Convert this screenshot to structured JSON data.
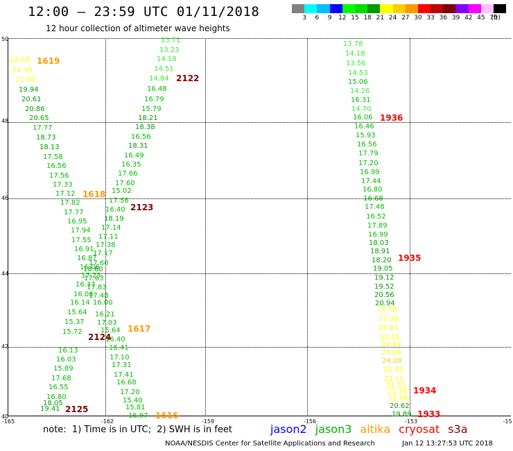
{
  "header": {
    "title": "12:00 – 23:59 UTC 01/11/2018",
    "subtitle": "12 hour collection of altimeter wave heights"
  },
  "colorbar": {
    "colors": [
      "#808080",
      "#00ffff",
      "#00bfff",
      "#0000ff",
      "#00ff00",
      "#00dd00",
      "#009900",
      "#ffff00",
      "#ffcc00",
      "#ff9900",
      "#ff0000",
      "#c00000",
      "#800000",
      "#8000ff",
      "#ff00ff",
      "#ffc0ff",
      "#000000"
    ],
    "labels": [
      "3",
      "6",
      "9",
      "12",
      "15",
      "18",
      "21",
      "24",
      "27",
      "30",
      "33",
      "36",
      "39",
      "42",
      "45",
      "70",
      "(ft)"
    ]
  },
  "map": {
    "lat_labels": [
      "50",
      "48",
      "46",
      "44",
      "42",
      "40"
    ],
    "lon_labels": [
      "-165",
      "-162",
      "-159",
      "-156",
      "-153",
      "-15"
    ]
  },
  "pass_labels": [
    {
      "text": "1619",
      "color": "#ff9900"
    },
    {
      "text": "2122",
      "color": "#800000"
    },
    {
      "text": "1936",
      "color": "#ff0000"
    },
    {
      "text": "1618",
      "color": "#ff9900"
    },
    {
      "text": "2123",
      "color": "#800000"
    },
    {
      "text": "1935",
      "color": "#ff0000"
    },
    {
      "text": "1617",
      "color": "#ff9900"
    },
    {
      "text": "2124",
      "color": "#800000"
    },
    {
      "text": "2125",
      "color": "#800000"
    },
    {
      "text": "1616",
      "color": "#ff9900"
    },
    {
      "text": "1934",
      "color": "#ff0000"
    },
    {
      "text": "1933",
      "color": "#ff0000"
    }
  ],
  "track_1616_1619": [
    "22.60",
    "21.39",
    "21.09",
    "19.94",
    "20.61",
    "20.86",
    "20.65",
    "17.77",
    "18.73",
    "18.13",
    "17.58",
    "16.56",
    "17.56",
    "17.33",
    "17.12",
    "17.82",
    "17.77",
    "16.95",
    "17.94",
    "17.55",
    "16.91",
    "16.87",
    "16.06",
    "17.23",
    "16.37",
    "16.08",
    "16.14",
    "15.64",
    "15.37",
    "15.72",
    "16.13",
    "16.03",
    "15.89",
    "17.68",
    "16.55",
    "16.80",
    "18.05",
    "19.41"
  ],
  "track_2122_2125": [
    "13.71",
    "13.23",
    "14.18",
    "14.51",
    "14.84",
    "16.48",
    "16.79",
    "15.79",
    "18.21",
    "18.38",
    "16.56",
    "18.31",
    "16.49",
    "16.35",
    "17.66",
    "17.60",
    "15.02",
    "17.56",
    "16.40",
    "18.19",
    "17.14",
    "17.11",
    "17.38",
    "17.17",
    "17.60",
    "18.60",
    "17.63",
    "17.83",
    "17.48",
    "16.00",
    "16.21",
    "17.03",
    "15.64",
    "16.40",
    "16.41",
    "17.10",
    "17.31",
    "17.41",
    "16.68",
    "17.20",
    "15.40",
    "15.81",
    "16.97"
  ],
  "track_1933_1936": [
    "13.78",
    "14.18",
    "13.56",
    "14.53",
    "15.06",
    "14.26",
    "16.31",
    "14.70",
    "16.06",
    "16.46",
    "15.93",
    "16.56",
    "17.79",
    "17.20",
    "16.99",
    "17.44",
    "16.80",
    "16.68",
    "17.48",
    "16.52",
    "17.89",
    "16.99",
    "18.03",
    "18.91",
    "18.20",
    "19.05",
    "19.12",
    "19.52",
    "20.56",
    "20.94",
    "21.98",
    "22.39",
    "22.81",
    "23.15",
    "22.69",
    "23.09",
    "24.08",
    "22.35",
    "21.11",
    "21.51",
    "21.26",
    "21.00",
    "20.62",
    "19.89"
  ],
  "footer": {
    "note": "note:  1) Time is in UTC;  2) SWH is in feet",
    "legend": [
      {
        "text": "jason2",
        "color": "#0000ff"
      },
      {
        "text": "jason3",
        "color": "#00aa00"
      },
      {
        "text": "altika",
        "color": "#ff9900"
      },
      {
        "text": "cryosat",
        "color": "#ff0000"
      },
      {
        "text": "s3a",
        "color": "#800000"
      }
    ],
    "credit": "NOAA/NESDIS Center for Satellite Applications and Research",
    "date": "Jan 12 13:27:53 UTC 2018"
  }
}
